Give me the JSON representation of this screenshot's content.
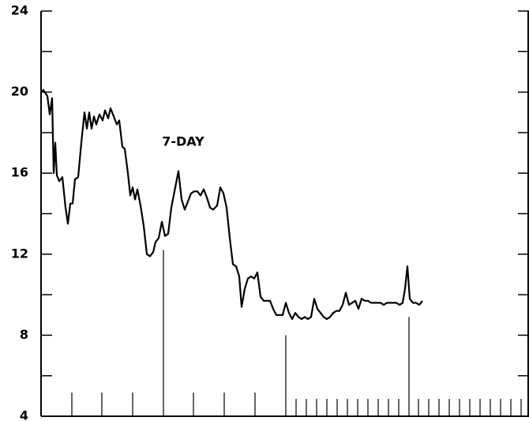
{
  "chart_data": {
    "type": "line",
    "annotation": "7-DAY",
    "color": "#000000",
    "xlim": [
      0,
      618
    ],
    "ylim": [
      4,
      24
    ],
    "yticks": [
      4,
      8,
      12,
      16,
      20,
      24
    ],
    "y_minor_ticks": [
      6,
      10,
      14,
      18,
      22
    ],
    "xticks": [
      39,
      77,
      116,
      193,
      232,
      271,
      323,
      336,
      349,
      362,
      375,
      388,
      401,
      414,
      427,
      440,
      453,
      478,
      491,
      504,
      517,
      530,
      543,
      556,
      569,
      582,
      595,
      608
    ],
    "reference_lines": [
      {
        "x": 155,
        "y": 12.2
      },
      {
        "x": 310,
        "y": 8.0
      },
      {
        "x": 466,
        "y": 8.9
      }
    ],
    "x": [
      0,
      3,
      8,
      11,
      14,
      16,
      18,
      20,
      23,
      27,
      31,
      34,
      37,
      40,
      43,
      47,
      51,
      55,
      58,
      61,
      64,
      67,
      70,
      74,
      78,
      81,
      85,
      88,
      92,
      96,
      99,
      103,
      106,
      110,
      113,
      116,
      119,
      122,
      126,
      130,
      134,
      138,
      142,
      145,
      149,
      153,
      157,
      161,
      165,
      169,
      174,
      178,
      182,
      186,
      190,
      194,
      198,
      202,
      206,
      210,
      214,
      218,
      223,
      227,
      231,
      235,
      239,
      243,
      247,
      251,
      254,
      258,
      262,
      266,
      270,
      274,
      278,
      282,
      286,
      290,
      294,
      298,
      302,
      306,
      310,
      314,
      318,
      322,
      326,
      330,
      334,
      338,
      342,
      346,
      350,
      354,
      358,
      362,
      366,
      370,
      374,
      378,
      382,
      386,
      390,
      394,
      398,
      402,
      406,
      410,
      414,
      418,
      422,
      426,
      430,
      434,
      438,
      442,
      446,
      450,
      454,
      458,
      461,
      464,
      467,
      471,
      475,
      479,
      483
    ],
    "values": [
      20.0,
      20.1,
      19.8,
      18.9,
      19.7,
      16.0,
      17.5,
      15.9,
      15.6,
      15.8,
      14.3,
      13.5,
      14.5,
      14.5,
      15.7,
      15.8,
      17.5,
      19.0,
      18.2,
      19.0,
      18.2,
      18.8,
      18.4,
      18.9,
      18.6,
      19.1,
      18.7,
      19.2,
      18.8,
      18.4,
      18.6,
      17.3,
      17.2,
      16.0,
      14.9,
      15.3,
      14.7,
      15.2,
      14.4,
      13.4,
      12.0,
      11.9,
      12.1,
      12.6,
      12.8,
      13.6,
      12.9,
      13.0,
      14.3,
      15.1,
      16.1,
      14.7,
      14.2,
      14.6,
      15.0,
      15.1,
      15.1,
      14.9,
      15.2,
      14.8,
      14.3,
      14.2,
      14.4,
      15.3,
      15.0,
      14.3,
      12.8,
      11.5,
      11.4,
      10.9,
      9.4,
      10.3,
      10.8,
      10.9,
      10.8,
      11.1,
      9.9,
      9.7,
      9.7,
      9.7,
      9.3,
      9.0,
      9.0,
      9.0,
      9.6,
      9.1,
      8.8,
      9.1,
      8.9,
      8.8,
      8.9,
      8.8,
      8.9,
      9.8,
      9.3,
      9.1,
      8.9,
      8.8,
      8.9,
      9.1,
      9.2,
      9.2,
      9.5,
      10.1,
      9.5,
      9.6,
      9.7,
      9.3,
      9.8,
      9.7,
      9.7,
      9.6,
      9.6,
      9.6,
      9.6,
      9.5,
      9.6,
      9.6,
      9.6,
      9.6,
      9.5,
      9.6,
      10.3,
      11.4,
      9.8,
      9.6,
      9.6,
      9.5,
      9.7
    ]
  }
}
